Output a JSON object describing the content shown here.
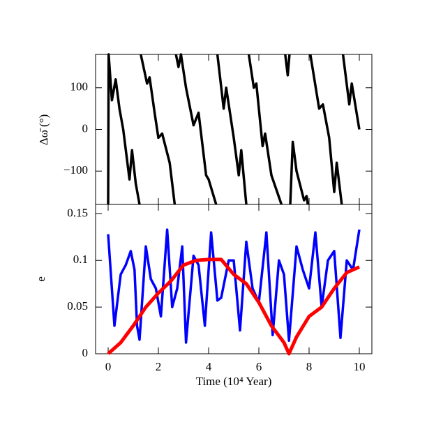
{
  "chart_data": [
    {
      "type": "line",
      "ylabel": "Δω̄ (°)",
      "series": [
        {
          "color": "#000000",
          "x": [
            0.0,
            0.02,
            0.15,
            0.3,
            0.45,
            0.6,
            0.85,
            0.95,
            1.1,
            1.25,
            1.27,
            1.3,
            1.55,
            1.65,
            1.85,
            2.0,
            2.15,
            2.45,
            2.65,
            2.67,
            2.7,
            2.8,
            2.9,
            3.1,
            3.4,
            3.6,
            3.9,
            4.0,
            4.15,
            4.3,
            4.32,
            4.35,
            4.6,
            4.7,
            5.0,
            5.2,
            5.3,
            5.5,
            5.55,
            5.6,
            5.8,
            5.9,
            6.15,
            6.25,
            6.5,
            6.9,
            6.97,
            7.05,
            7.15,
            7.22,
            7.23,
            7.25,
            7.35,
            7.5,
            7.8,
            7.9,
            7.95,
            8.0,
            8.05,
            8.4,
            8.55,
            8.8,
            9.0,
            9.1,
            9.3,
            9.32,
            9.35,
            9.6,
            9.7,
            10.0
          ],
          "values": [
            -180,
            180,
            70,
            120,
            50,
            0,
            -120,
            -50,
            -130,
            -180,
            null,
            180,
            110,
            125,
            40,
            -20,
            -10,
            -80,
            -180,
            null,
            180,
            150,
            180,
            100,
            10,
            40,
            -110,
            -120,
            -150,
            -180,
            null,
            180,
            50,
            100,
            -20,
            -110,
            -50,
            -180,
            null,
            180,
            100,
            110,
            -40,
            -10,
            -110,
            -180,
            null,
            180,
            130,
            180,
            null,
            -180,
            -30,
            -100,
            -170,
            -160,
            -180,
            null,
            180,
            50,
            60,
            -20,
            -150,
            -80,
            -180,
            null,
            180,
            60,
            110,
            0
          ]
        }
      ],
      "xlim": [
        -0.5,
        10.5
      ],
      "ylim": [
        -180,
        180
      ],
      "yticks": [
        {
          "value": -100,
          "label": "−100"
        },
        0,
        100
      ]
    },
    {
      "type": "line",
      "ylabel": "e",
      "xlabel": "Time (10⁴ Year)",
      "series": [
        {
          "color": "#0000ff",
          "x": [
            0,
            0.25,
            0.5,
            0.7,
            0.9,
            1.05,
            1.15,
            1.25,
            1.5,
            1.7,
            1.9,
            2.1,
            2.35,
            2.55,
            2.75,
            2.95,
            3.1,
            3.4,
            3.6,
            3.85,
            4.1,
            4.35,
            4.5,
            4.8,
            5.0,
            5.25,
            5.5,
            5.75,
            6.0,
            6.3,
            6.55,
            6.8,
            7.0,
            7.2,
            7.5,
            7.75,
            8.0,
            8.25,
            8.5,
            8.75,
            9.0,
            9.25,
            9.5,
            9.75,
            10.0
          ],
          "values": [
            0.128,
            0.03,
            0.085,
            0.095,
            0.11,
            0.09,
            0.03,
            0.015,
            0.115,
            0.08,
            0.07,
            0.04,
            0.133,
            0.05,
            0.07,
            0.115,
            0.012,
            0.105,
            0.095,
            0.03,
            0.13,
            0.057,
            0.06,
            0.1,
            0.1,
            0.025,
            0.12,
            0.07,
            0.055,
            0.13,
            0.02,
            0.1,
            0.085,
            0.014,
            0.115,
            0.09,
            0.07,
            0.13,
            0.05,
            0.1,
            0.11,
            0.017,
            0.1,
            0.09,
            0.133
          ]
        },
        {
          "color": "#ff0000",
          "x": [
            0,
            0.5,
            1,
            1.5,
            2,
            2.5,
            3,
            3.5,
            4,
            4.5,
            5,
            5.5,
            6,
            6.5,
            7,
            7.2,
            7.5,
            8,
            8.5,
            9,
            9.5,
            10
          ],
          "values": [
            0,
            0.012,
            0.03,
            0.05,
            0.065,
            0.078,
            0.095,
            0.1,
            0.101,
            0.101,
            0.085,
            0.075,
            0.055,
            0.03,
            0.012,
            0,
            0.018,
            0.04,
            0.05,
            0.07,
            0.087,
            0.093
          ]
        }
      ],
      "xlim": [
        -0.5,
        10.5
      ],
      "ylim": [
        0,
        0.16
      ],
      "xticks": [
        0,
        2,
        4,
        6,
        8,
        10
      ],
      "yticks": [
        0,
        0.05,
        0.1,
        0.15
      ]
    }
  ]
}
